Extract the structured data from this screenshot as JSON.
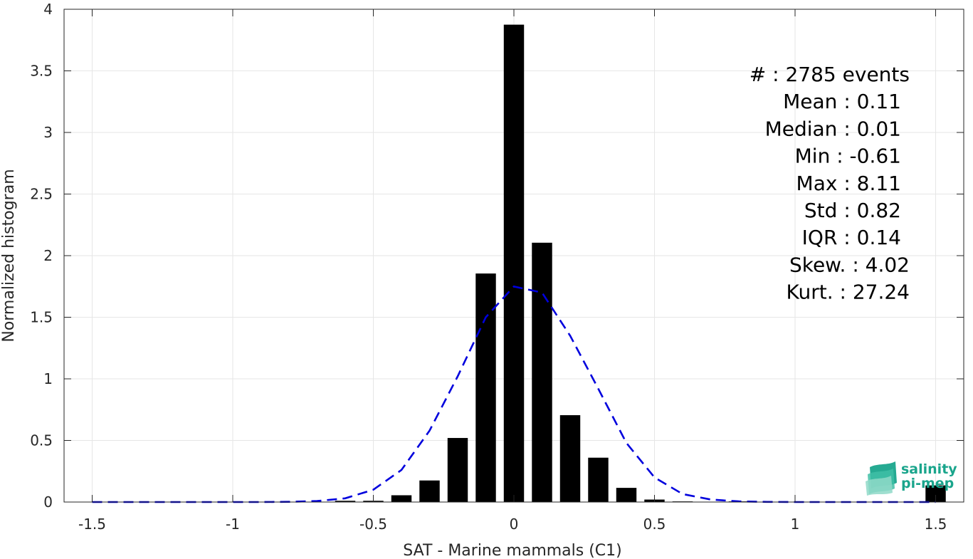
{
  "chart_data": {
    "type": "bar",
    "xlabel": "SAT - Marine mammals (C1)",
    "ylabel": "Normalized histogram",
    "xlim": [
      -1.6,
      1.6
    ],
    "ylim": [
      0,
      4
    ],
    "xticks": [
      "-1.5",
      "-1",
      "-0.5",
      "0",
      "0.5",
      "1",
      "1.5"
    ],
    "xtick_values": [
      -1.5,
      -1,
      -0.5,
      0,
      0.5,
      1,
      1.5
    ],
    "yticks": [
      "0",
      "0.5",
      "1",
      "1.5",
      "2",
      "2.5",
      "3",
      "3.5",
      "4"
    ],
    "ytick_values": [
      0,
      0.5,
      1,
      1.5,
      2,
      2.5,
      3,
      3.5,
      4
    ],
    "grid": true,
    "bar_color": "#000000",
    "curve_color": "#0000dd",
    "bars": {
      "x": [
        -0.6,
        -0.5,
        -0.4,
        -0.3,
        -0.2,
        -0.1,
        0.0,
        0.1,
        0.2,
        0.3,
        0.4,
        0.5,
        0.6,
        0.8,
        1.5
      ],
      "values": [
        0.01,
        0.01,
        0.055,
        0.175,
        0.52,
        1.855,
        3.875,
        2.105,
        0.705,
        0.36,
        0.115,
        0.02,
        0.005,
        0.005,
        0.135
      ]
    },
    "fit_curve": {
      "style": "dashed",
      "x": [
        -1.5,
        -1.4,
        -1.3,
        -1.2,
        -1.1,
        -1.0,
        -0.9,
        -0.8,
        -0.7,
        -0.6,
        -0.5,
        -0.4,
        -0.3,
        -0.2,
        -0.1,
        0.0,
        0.1,
        0.2,
        0.3,
        0.4,
        0.5,
        0.6,
        0.7,
        0.8,
        0.9,
        1.0,
        1.1,
        1.2,
        1.3,
        1.4,
        1.5
      ],
      "y": [
        0,
        0,
        0,
        0,
        0,
        0,
        0,
        0.002,
        0.008,
        0.03,
        0.1,
        0.26,
        0.58,
        1.02,
        1.5,
        1.75,
        1.7,
        1.35,
        0.92,
        0.48,
        0.2,
        0.065,
        0.02,
        0.005,
        0.001,
        0,
        0,
        0,
        0,
        0,
        0
      ]
    },
    "stats": [
      {
        "label": "#  : 2785 events",
        "value": 2785
      },
      {
        "label": "Mean : 0.11",
        "value": 0.11
      },
      {
        "label": "Median : 0.01",
        "value": 0.01
      },
      {
        "label": "Min : -0.61",
        "value": -0.61
      },
      {
        "label": "Max : 8.11",
        "value": 8.11
      },
      {
        "label": "Std : 0.82",
        "value": 0.82
      },
      {
        "label": "IQR : 0.14",
        "value": 0.14
      },
      {
        "label": "Skew. : 4.02",
        "value": 4.02
      },
      {
        "label": "Kurt. : 27.24",
        "value": 27.24
      }
    ]
  },
  "logo": {
    "line1": "salinity",
    "line2": "pi-mep",
    "color": "#1aa58c"
  }
}
